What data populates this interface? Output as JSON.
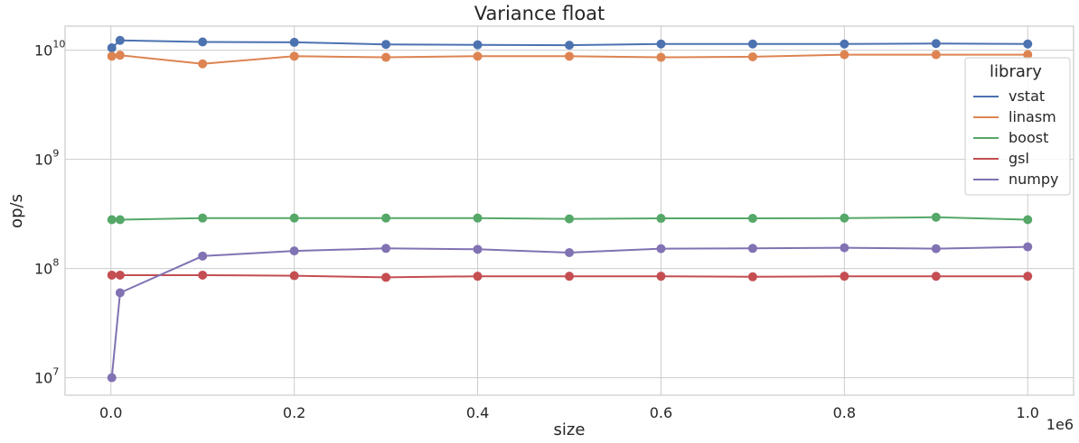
{
  "chart_data": {
    "type": "line",
    "title": "Variance float",
    "xlabel": "size",
    "ylabel": "op/s",
    "x_offset_label": "1e6",
    "yscale": "log",
    "grid": true,
    "x_ticks": [
      "0.0",
      "0.2",
      "0.4",
      "0.6",
      "0.8",
      "1.0"
    ],
    "y_tick_exponents": [
      "7",
      "8",
      "9",
      "10"
    ],
    "legend": {
      "title": "library",
      "position": "top-right"
    },
    "x": [
      1000,
      10000,
      100000,
      200000,
      300000,
      400000,
      500000,
      600000,
      700000,
      800000,
      900000,
      1000000
    ],
    "series": [
      {
        "name": "vstat",
        "color": "#4c72b0",
        "values": [
          10500000000,
          12300000000,
          11900000000,
          11800000000,
          11300000000,
          11200000000,
          11100000000,
          11400000000,
          11400000000,
          11400000000,
          11500000000,
          11400000000
        ]
      },
      {
        "name": "linasm",
        "color": "#dd8452",
        "values": [
          8800000000,
          9000000000,
          7500000000,
          8800000000,
          8600000000,
          8800000000,
          8800000000,
          8600000000,
          8700000000,
          9100000000,
          9100000000,
          9100000000
        ]
      },
      {
        "name": "boost",
        "color": "#55a868",
        "values": [
          280000000,
          280000000,
          290000000,
          290000000,
          290000000,
          290000000,
          285000000,
          288000000,
          288000000,
          290000000,
          295000000,
          280000000
        ]
      },
      {
        "name": "gsl",
        "color": "#c44e52",
        "values": [
          87000000,
          87000000,
          87000000,
          86000000,
          83000000,
          85000000,
          85000000,
          85000000,
          84000000,
          85000000,
          85000000,
          85000000
        ]
      },
      {
        "name": "numpy",
        "color": "#8172b3",
        "values": [
          10000000,
          60000000,
          130000000,
          145000000,
          153000000,
          150000000,
          140000000,
          152000000,
          153000000,
          155000000,
          152000000,
          158000000
        ]
      }
    ]
  }
}
